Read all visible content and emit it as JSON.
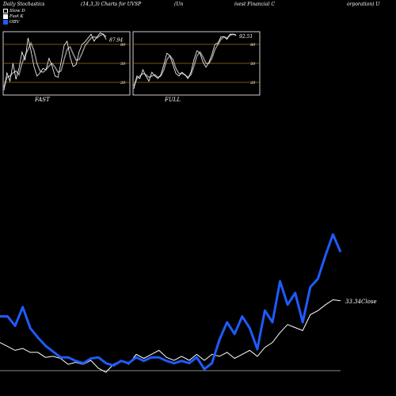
{
  "header": {
    "part1": "Daily Stochastics",
    "part2": "(14,3,3) Charts for UVSP",
    "part3": "(Un",
    "part4": "ivest Financial C",
    "part5": "orporation) U"
  },
  "legend": [
    {
      "label": "Slow D",
      "color": "#000000"
    },
    {
      "label": "Fast K",
      "color": "#ffffff"
    },
    {
      "label": "OBV",
      "color": "#1f5bff"
    }
  ],
  "colors": {
    "obv": "#1f5bff",
    "price": "#ffffff",
    "grid": "#a07018",
    "panel_border": "#ffffff"
  },
  "chart_data": [
    {
      "type": "line",
      "panel": "FAST",
      "last_value_label": "87.94",
      "yticks": [
        "80",
        "50",
        "20"
      ],
      "ylim": [
        0,
        100
      ],
      "series": [
        {
          "name": "Fast K",
          "values": [
            8,
            35,
            22,
            50,
            25,
            42,
            68,
            55,
            90,
            70,
            45,
            30,
            35,
            42,
            40,
            58,
            46,
            30,
            28,
            52,
            78,
            85,
            60,
            45,
            48,
            68,
            80,
            84,
            90,
            96,
            85,
            92,
            98,
            96,
            88
          ]
        },
        {
          "name": "Slow D",
          "values": [
            12,
            28,
            30,
            35,
            38,
            32,
            50,
            62,
            72,
            82,
            70,
            50,
            38,
            36,
            40,
            46,
            50,
            44,
            36,
            38,
            56,
            72,
            76,
            65,
            55,
            56,
            66,
            78,
            84,
            90,
            92,
            90,
            94,
            96,
            92
          ]
        }
      ]
    },
    {
      "type": "line",
      "panel": "FULL",
      "last_value_label": "92.51",
      "yticks": [
        "80",
        "50",
        "20"
      ],
      "ylim": [
        0,
        100
      ],
      "series": [
        {
          "name": "Fast K",
          "values": [
            10,
            30,
            26,
            40,
            30,
            22,
            36,
            30,
            26,
            32,
            48,
            66,
            62,
            48,
            34,
            30,
            36,
            32,
            26,
            36,
            56,
            70,
            66,
            52,
            44,
            52,
            64,
            80,
            82,
            92,
            92,
            88,
            96,
            96,
            94
          ]
        },
        {
          "name": "Slow D",
          "values": [
            14,
            26,
            30,
            34,
            32,
            28,
            30,
            32,
            28,
            30,
            40,
            56,
            62,
            56,
            42,
            34,
            34,
            32,
            28,
            32,
            46,
            62,
            68,
            60,
            50,
            50,
            58,
            72,
            80,
            88,
            92,
            90,
            94,
            96,
            95
          ]
        }
      ]
    },
    {
      "type": "line",
      "panel": "main",
      "close_label": "33.34Close",
      "series": [
        {
          "name": "OBV",
          "values": [
            30,
            30,
            22,
            38,
            20,
            12,
            5,
            0,
            -5,
            -5,
            -8,
            -10,
            -6,
            -5,
            -10,
            -12,
            -8,
            -10,
            -5,
            -8,
            -5,
            -5,
            -8,
            -10,
            -8,
            -10,
            -5,
            -15,
            -10,
            10,
            25,
            15,
            30,
            20,
            2,
            35,
            25,
            60,
            40,
            50,
            25,
            55,
            62,
            82,
            100,
            85
          ]
        },
        {
          "name": "Close",
          "values": [
            30,
            26,
            22,
            24,
            20,
            20,
            15,
            16,
            14,
            8,
            10,
            8,
            12,
            4,
            0,
            8,
            12,
            8,
            18,
            14,
            18,
            22,
            15,
            12,
            16,
            12,
            18,
            12,
            18,
            16,
            20,
            14,
            18,
            22,
            16,
            25,
            30,
            40,
            48,
            45,
            42,
            58,
            62,
            68,
            73,
            72
          ]
        }
      ]
    }
  ]
}
